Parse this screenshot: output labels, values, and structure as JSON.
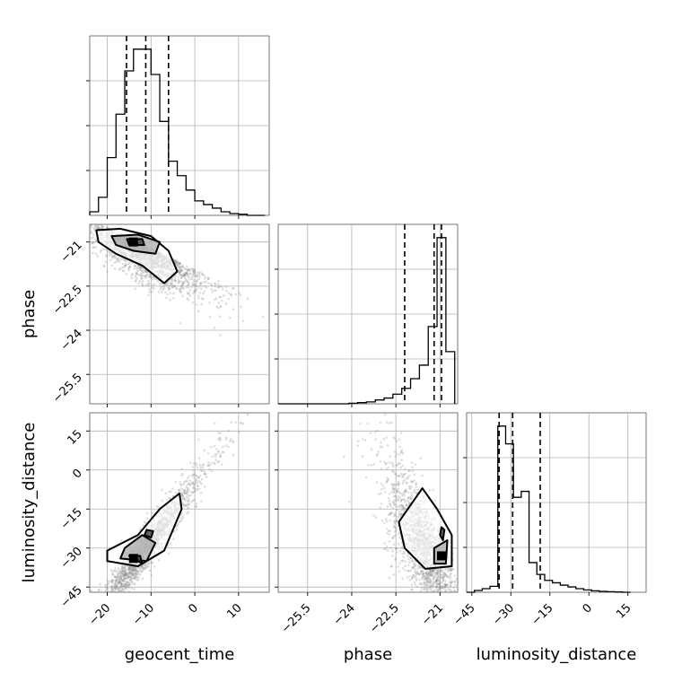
{
  "chart_data": {
    "type": "corner",
    "parameters": [
      "geocent_time",
      "phase",
      "luminosity_distance"
    ],
    "marginals": [
      {
        "name": "geocent_time",
        "range": [
          -24,
          17
        ],
        "xticks": [
          -20,
          -10,
          0,
          10
        ],
        "bins_edges": [
          -24,
          -22,
          -20,
          -18,
          -16,
          -14,
          -12,
          -10,
          -8,
          -6,
          -4,
          -2,
          0,
          2,
          4,
          6,
          8,
          10,
          12,
          14,
          16
        ],
        "counts": [
          1,
          5,
          16,
          28,
          40,
          46,
          46,
          39,
          26,
          15,
          11,
          7,
          4,
          3,
          2,
          1,
          0.5,
          0.3,
          0,
          0
        ],
        "quantiles": [
          -15.6,
          -11.2,
          -6
        ]
      },
      {
        "name": "phase",
        "range": [
          -26.5,
          -20.4
        ],
        "xticks": [
          -25.5,
          -24.0,
          -22.5,
          -21.0
        ],
        "bins_edges": [
          -26.5,
          -26.2,
          -25.9,
          -25.6,
          -25.3,
          -25.0,
          -24.7,
          -24.4,
          -24.1,
          -23.8,
          -23.5,
          -23.2,
          -22.9,
          -22.6,
          -22.3,
          -22.0,
          -21.7,
          -21.4,
          -21.1,
          -20.8,
          -20.5
        ],
        "counts": [
          0,
          0,
          0,
          0,
          0,
          0,
          0,
          0,
          0.3,
          0.6,
          1,
          2,
          3,
          5,
          8,
          13,
          20,
          40,
          86,
          27
        ],
        "quantiles": [
          -22.2,
          -21.2,
          -20.95
        ]
      },
      {
        "name": "luminosity_distance",
        "range": [
          -47,
          22
        ],
        "xticks": [
          -45,
          -30,
          -15,
          0,
          15
        ],
        "bins_edges": [
          -47,
          -44,
          -41,
          -38,
          -35,
          -32,
          -29,
          -26,
          -23,
          -20,
          -17,
          -14,
          -11,
          -8,
          -5,
          -2,
          1,
          4,
          7,
          10,
          13,
          16
        ],
        "counts": [
          0,
          0.3,
          0.6,
          1,
          28,
          25,
          16,
          17,
          5,
          3,
          2,
          1.6,
          1.2,
          0.9,
          0.6,
          0.4,
          0.25,
          0.15,
          0.1,
          0.05,
          0
        ],
        "quantiles": [
          -34.5,
          -29.3,
          -18.7
        ]
      }
    ],
    "joint_panels": [
      {
        "x": "geocent_time",
        "y": "phase",
        "yticks": [
          -21.0,
          -22.5,
          -24.0,
          -25.5
        ],
        "yrange": [
          -26.5,
          -20.4
        ],
        "correlation": "negative",
        "density_peak": {
          "x": -14,
          "y": -21.0
        }
      },
      {
        "x": "geocent_time",
        "y": "luminosity_distance",
        "yticks": [
          15,
          0,
          -15,
          -30,
          -45
        ],
        "yrange": [
          -47,
          22
        ],
        "correlation": "positive",
        "density_peak": {
          "x": -14,
          "y": -34
        }
      },
      {
        "x": "phase",
        "y": "luminosity_distance",
        "correlation": "weak",
        "density_peak": {
          "x": -20.95,
          "y": -33
        }
      }
    ],
    "xlabels": [
      "geocent_time",
      "phase",
      "luminosity_distance"
    ],
    "ylabels": [
      "",
      "phase",
      "luminosity_distance"
    ],
    "grid": true,
    "quantile_style": "dashed"
  }
}
